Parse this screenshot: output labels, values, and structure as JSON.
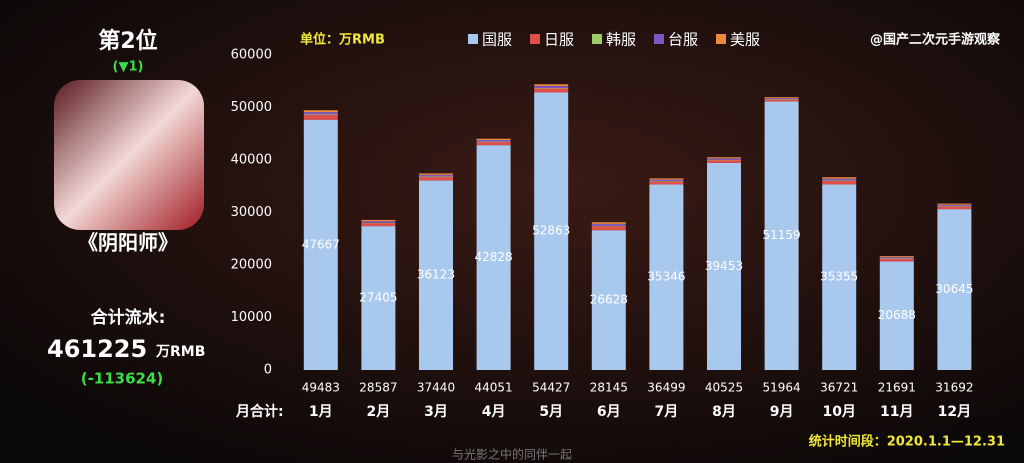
{
  "rank_panel": {
    "rank": "第2位",
    "change": "(▼1)",
    "game": "《阴阳师》",
    "total_label": "合计流水:",
    "total": "461225",
    "total_unit": "万RMB",
    "total_change": "(-113624)"
  },
  "chart_data": {
    "type": "bar",
    "stacked": true,
    "unit": "单位：万RMB",
    "source": "@国产二次元手游观察",
    "period": "统计时间段：2020.1.1—12.31",
    "caption": "与光影之中的同伴一起",
    "categories": [
      "1月",
      "2月",
      "3月",
      "4月",
      "5月",
      "6月",
      "7月",
      "8月",
      "9月",
      "10月",
      "11月",
      "12月"
    ],
    "totals_label": "月合计:",
    "totals": [
      49483,
      28587,
      37440,
      44051,
      54427,
      28145,
      36499,
      40525,
      51964,
      36721,
      21691,
      31692
    ],
    "series": [
      {
        "name": "国服",
        "color": "#a9c8ee",
        "values": [
          47667,
          27405,
          36123,
          42828,
          52863,
          26628,
          35346,
          39453,
          51159,
          35355,
          20688,
          30645
        ]
      },
      {
        "name": "日服",
        "color": "#e0504a",
        "values": [
          908,
          591,
          659,
          612,
          782,
          759,
          577,
          536,
          403,
          683,
          502,
          524
        ]
      },
      {
        "name": "韩服",
        "color": "#9ccc65",
        "values": [
          91,
          59,
          66,
          61,
          78,
          76,
          58,
          54,
          40,
          68,
          50,
          52
        ]
      },
      {
        "name": "台服",
        "color": "#7e57c2",
        "values": [
          454,
          296,
          329,
          306,
          391,
          379,
          288,
          268,
          201,
          342,
          251,
          262
        ]
      },
      {
        "name": "美服",
        "color": "#ef8a3c",
        "values": [
          363,
          236,
          263,
          244,
          313,
          303,
          230,
          214,
          161,
          273,
          200,
          209
        ]
      }
    ],
    "ylim": [
      0,
      60000
    ],
    "yticks": [
      0,
      10000,
      20000,
      30000,
      40000,
      50000,
      60000
    ]
  }
}
